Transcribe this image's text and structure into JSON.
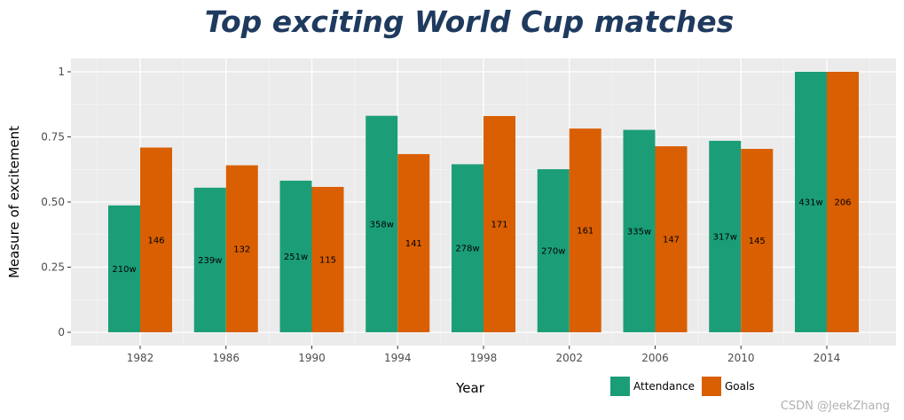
{
  "chart_data": {
    "type": "bar",
    "title": "Top exciting World Cup matches",
    "xlabel": "Year",
    "ylabel": "Measure of excitement",
    "categories": [
      "1982",
      "1986",
      "1990",
      "1994",
      "1998",
      "2002",
      "2006",
      "2010",
      "2014"
    ],
    "ylim": [
      0,
      1
    ],
    "yticks": [
      0,
      0.25,
      0.5,
      0.75,
      1
    ],
    "ytick_labels": [
      "0",
      "0.25",
      "0.50",
      "0.75",
      "1"
    ],
    "series": [
      {
        "name": "Attendance",
        "color": "#1b9e77",
        "values": [
          0.487,
          0.555,
          0.582,
          0.831,
          0.645,
          0.626,
          0.777,
          0.735,
          1.0
        ],
        "labels": [
          "210w",
          "239w",
          "251w",
          "358w",
          "278w",
          "270w",
          "335w",
          "317w",
          "431w"
        ]
      },
      {
        "name": "Goals",
        "color": "#d95f02",
        "values": [
          0.709,
          0.641,
          0.558,
          0.684,
          0.83,
          0.782,
          0.714,
          0.704,
          1.0
        ],
        "labels": [
          "146",
          "132",
          "115",
          "141",
          "171",
          "161",
          "147",
          "145",
          "206"
        ]
      }
    ],
    "grid": true,
    "legend_position": "bottom-right",
    "panel_color": "#ebebeb"
  },
  "watermark": "CSDN @JeekZhang"
}
